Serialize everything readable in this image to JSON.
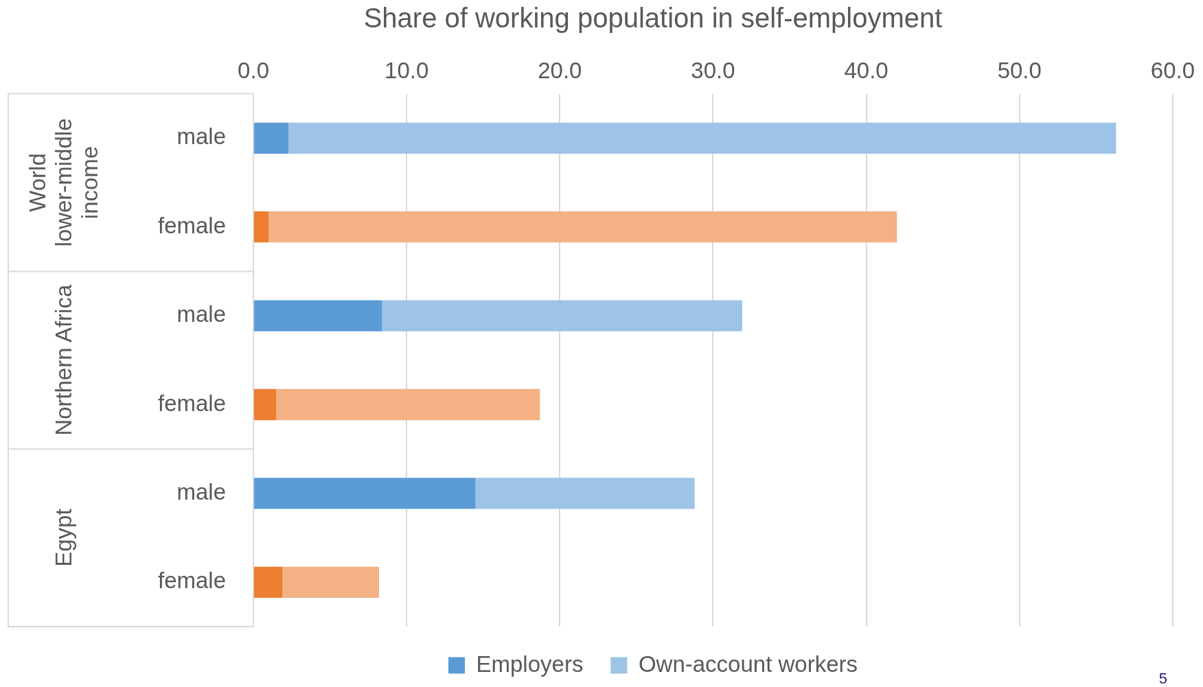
{
  "chart_data": {
    "type": "bar",
    "orientation": "horizontal",
    "stacked": true,
    "title": "Share of working population in self-employment",
    "categories": [
      "male",
      "female",
      "male",
      "female",
      "male",
      "female"
    ],
    "series": [
      {
        "name": "Employers",
        "colors": [
          "#5b9bd5",
          "#ed7d31",
          "#5b9bd5",
          "#ed7d31",
          "#5b9bd5",
          "#ed7d31"
        ],
        "values": [
          2.3,
          1.0,
          8.4,
          1.5,
          14.5,
          1.9
        ]
      },
      {
        "name": "Own-account workers",
        "colors": [
          "#9dc3e6",
          "#f4b183",
          "#9dc3e6",
          "#f4b183",
          "#9dc3e6",
          "#f4b183"
        ],
        "values": [
          54.0,
          41.0,
          23.5,
          17.2,
          14.3,
          6.3
        ]
      }
    ],
    "xlim": [
      0,
      60
    ],
    "xticks": [
      {
        "value": 0,
        "label": "0.0"
      },
      {
        "value": 10,
        "label": "10.0"
      },
      {
        "value": 20,
        "label": "20.0"
      },
      {
        "value": 30,
        "label": "30.0"
      },
      {
        "value": 40,
        "label": "40.0"
      },
      {
        "value": 50,
        "label": "50.0"
      },
      {
        "value": 60,
        "label": "60.0"
      }
    ],
    "grid": "x",
    "legend": "bottom",
    "annotations": [
      "World lower-middle income",
      "Northern Africa",
      "Egypt",
      "5"
    ]
  }
}
